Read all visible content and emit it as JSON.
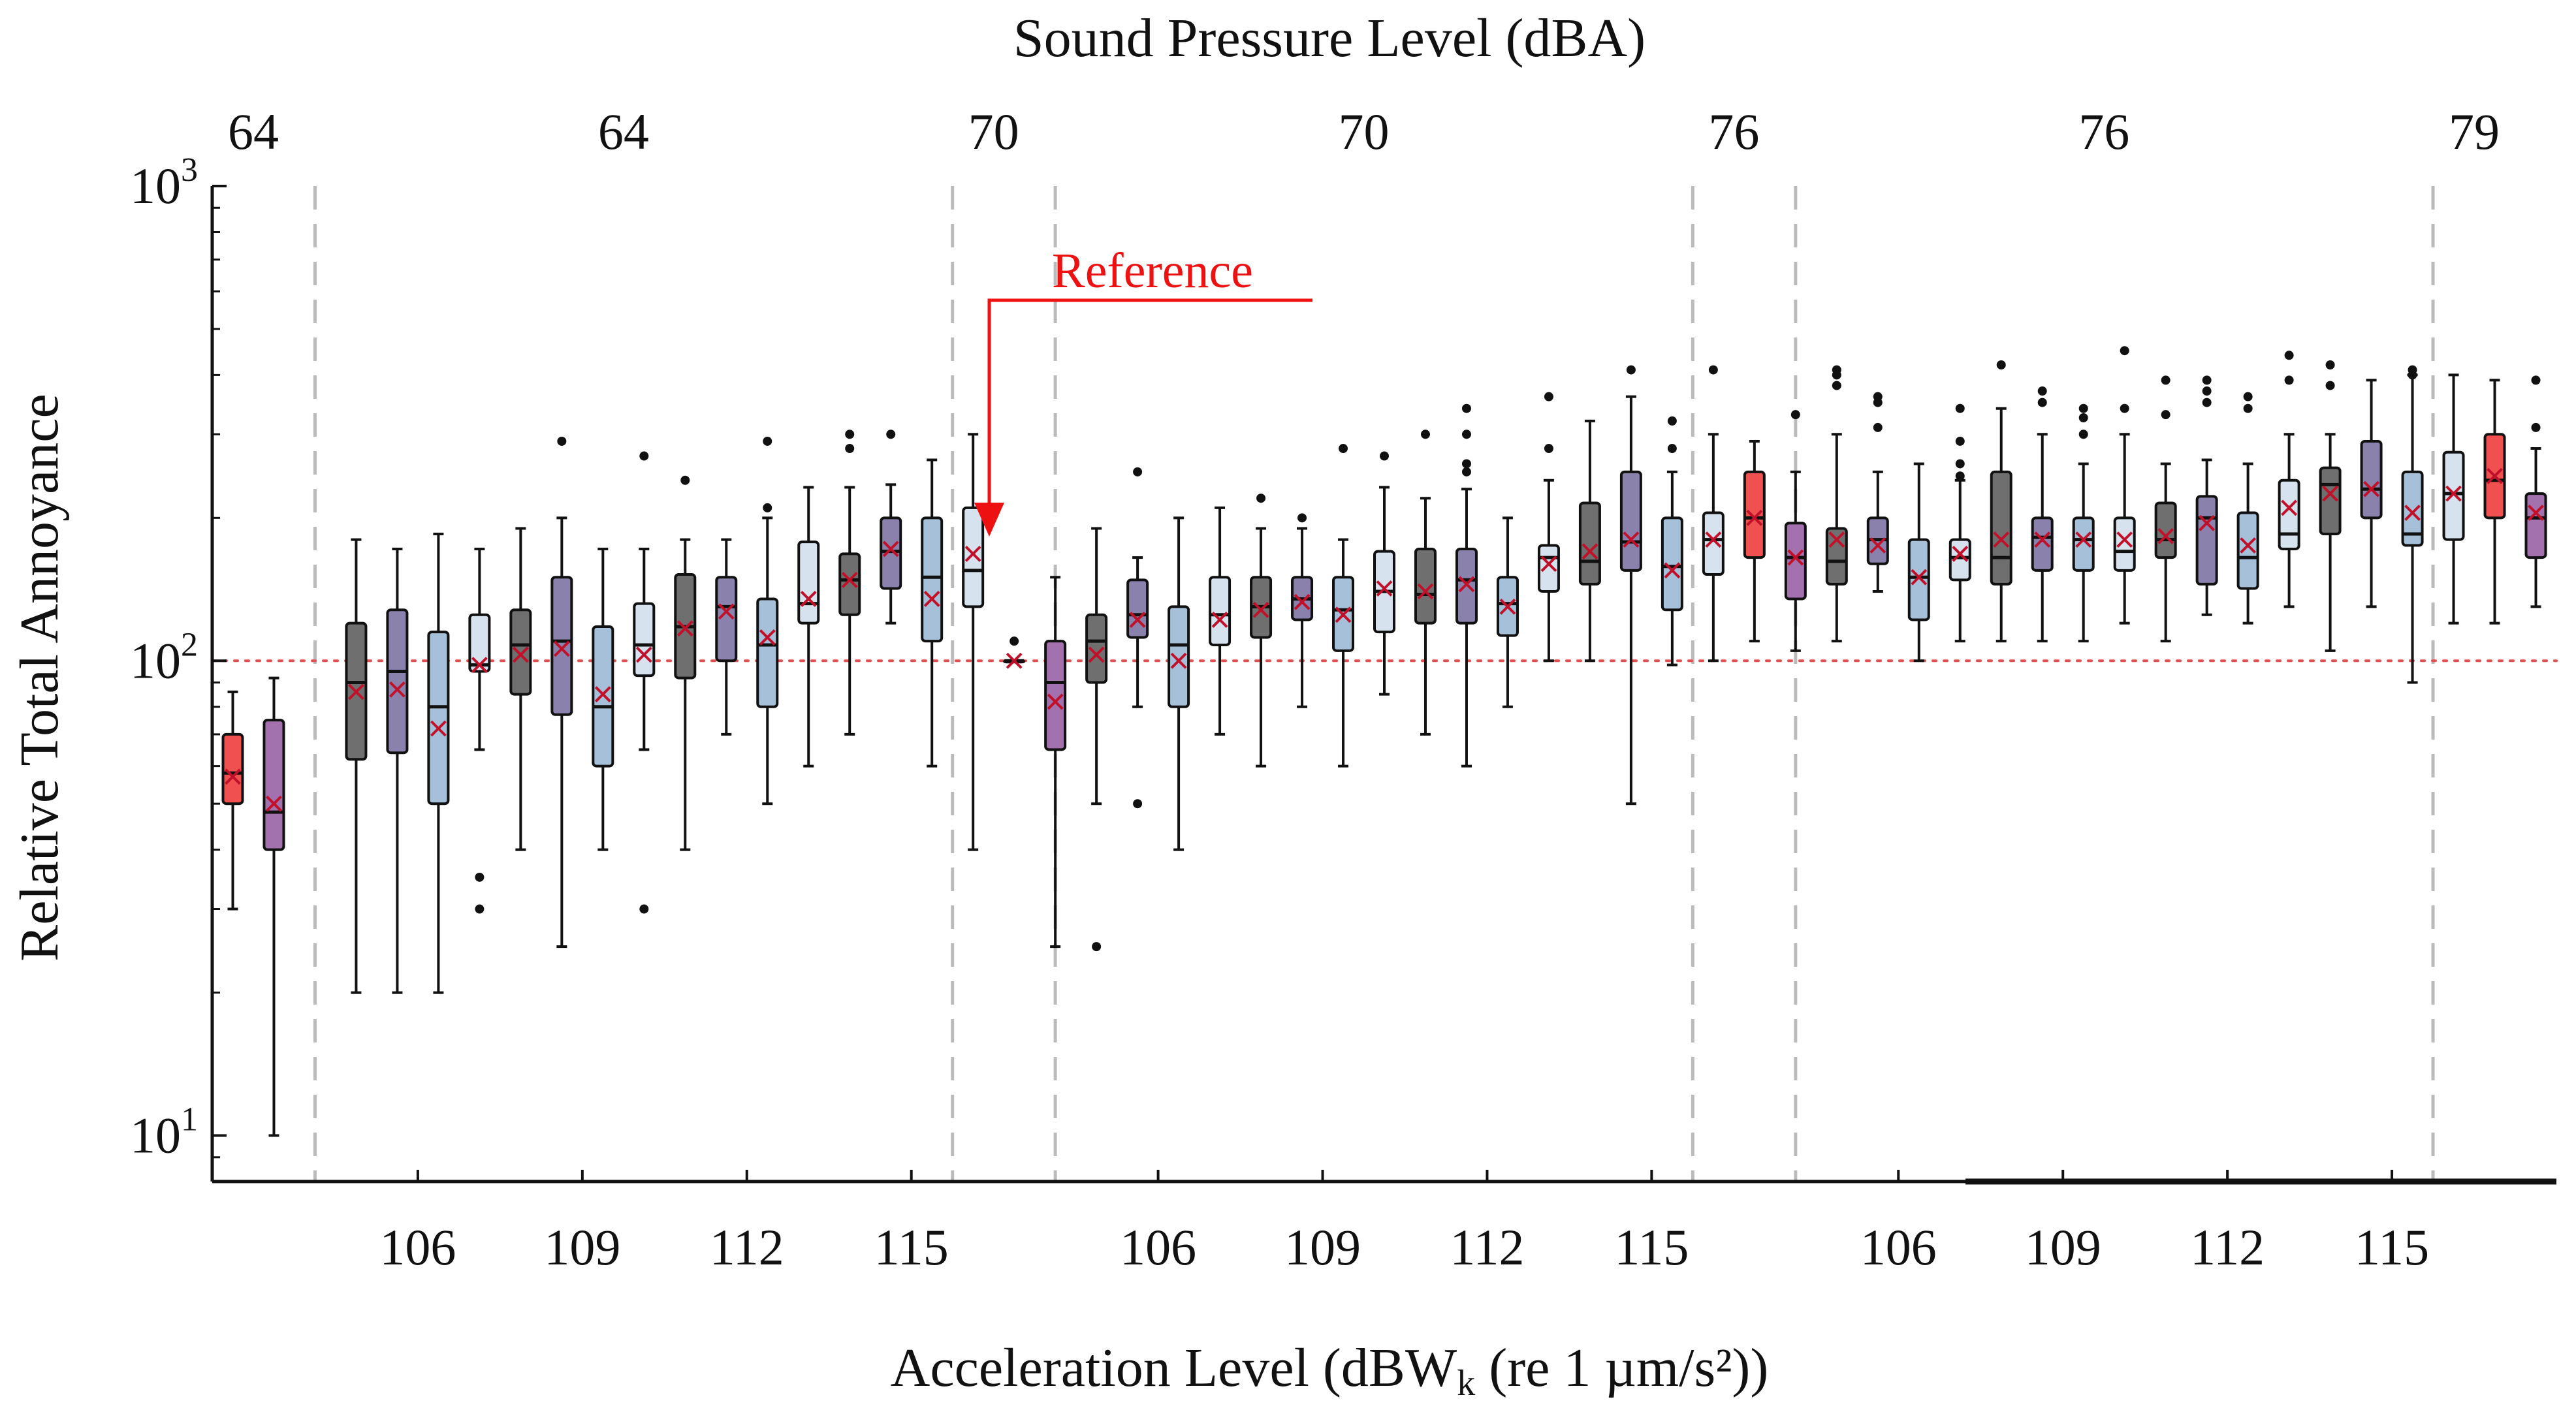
{
  "chart_data": {
    "type": "boxplot",
    "title_top": "Sound Pressure Level (dBA)",
    "xlabel_prefix": "Acceleration Level (dBW",
    "xlabel_sub": "k",
    "xlabel_suffix": " (re 1 µm/s²))",
    "ylabel": "Relative Total Annoyance",
    "yscale": "log",
    "ylim": [
      8,
      1000
    ],
    "y_ticks": [
      {
        "base": "10",
        "exp": "1",
        "value": 10
      },
      {
        "base": "10",
        "exp": "2",
        "value": 100
      },
      {
        "base": "10",
        "exp": "3",
        "value": 1000
      }
    ],
    "reference_value": 100,
    "reference_label": "Reference",
    "top_ticks": [
      {
        "label": "64",
        "pos": 1.5
      },
      {
        "label": "64",
        "pos": 10.5
      },
      {
        "label": "70",
        "pos": 19.5
      },
      {
        "label": "70",
        "pos": 28.5
      },
      {
        "label": "76",
        "pos": 37.5
      },
      {
        "label": "76",
        "pos": 46.5
      },
      {
        "label": "79",
        "pos": 55.5
      }
    ],
    "bottom_ticks": [
      {
        "label": "106",
        "pos": 5.5
      },
      {
        "label": "109",
        "pos": 9.5
      },
      {
        "label": "112",
        "pos": 13.5
      },
      {
        "label": "115",
        "pos": 17.5
      },
      {
        "label": "106",
        "pos": 23.5
      },
      {
        "label": "109",
        "pos": 27.5
      },
      {
        "label": "112",
        "pos": 31.5
      },
      {
        "label": "115",
        "pos": 35.5
      },
      {
        "label": "106",
        "pos": 41.5
      },
      {
        "label": "109",
        "pos": 45.5
      },
      {
        "label": "112",
        "pos": 49.5
      },
      {
        "label": "115",
        "pos": 53.5
      }
    ],
    "dividers": [
      3,
      18.5,
      21,
      36.5,
      39,
      54.5
    ],
    "x_range": [
      0.5,
      57.5
    ],
    "colors": {
      "red": "#f0504f",
      "purple": "#a371ad",
      "dark_gray": "#6f6f6f",
      "slate_purple": "#8a82ad",
      "light_blue": "#a6c0da",
      "pale_blue": "#d6e3ef",
      "mean_marker": "#c0102a",
      "reference_line": "#e05050",
      "reference_arrow": "#ee1111",
      "divider": "#bbbbbb"
    },
    "boxes": [
      {
        "pos": 1,
        "color": "red",
        "min": 30,
        "q1": 50,
        "median": 58,
        "q3": 70,
        "max": 86,
        "mean": 57,
        "outliers": []
      },
      {
        "pos": 2,
        "color": "purple",
        "min": 10,
        "q1": 40,
        "median": 48,
        "q3": 75,
        "max": 92,
        "mean": 50,
        "outliers": []
      },
      {
        "pos": 4,
        "color": "dark_gray",
        "min": 20,
        "q1": 62,
        "median": 90,
        "q3": 120,
        "max": 180,
        "mean": 86,
        "outliers": []
      },
      {
        "pos": 5,
        "color": "slate_purple",
        "min": 20,
        "q1": 64,
        "median": 95,
        "q3": 128,
        "max": 172,
        "mean": 87,
        "outliers": []
      },
      {
        "pos": 6,
        "color": "light_blue",
        "min": 20,
        "q1": 50,
        "median": 80,
        "q3": 115,
        "max": 185,
        "mean": 72,
        "outliers": []
      },
      {
        "pos": 7,
        "color": "pale_blue",
        "min": 65,
        "q1": 95,
        "median": 98,
        "q3": 125,
        "max": 172,
        "mean": 98,
        "outliers": [
          35,
          30
        ]
      },
      {
        "pos": 8,
        "color": "dark_gray",
        "min": 40,
        "q1": 85,
        "median": 108,
        "q3": 128,
        "max": 190,
        "mean": 103,
        "outliers": []
      },
      {
        "pos": 9,
        "color": "slate_purple",
        "min": 25,
        "q1": 77,
        "median": 110,
        "q3": 150,
        "max": 200,
        "mean": 106,
        "outliers": [
          290
        ]
      },
      {
        "pos": 10,
        "color": "light_blue",
        "min": 40,
        "q1": 60,
        "median": 80,
        "q3": 118,
        "max": 172,
        "mean": 85,
        "outliers": []
      },
      {
        "pos": 11,
        "color": "pale_blue",
        "min": 65,
        "q1": 93,
        "median": 108,
        "q3": 132,
        "max": 172,
        "mean": 103,
        "outliers": [
          270,
          30
        ]
      },
      {
        "pos": 12,
        "color": "dark_gray",
        "min": 40,
        "q1": 92,
        "median": 118,
        "q3": 152,
        "max": 180,
        "mean": 117,
        "outliers": [
          240
        ]
      },
      {
        "pos": 13,
        "color": "slate_purple",
        "min": 70,
        "q1": 100,
        "median": 130,
        "q3": 150,
        "max": 180,
        "mean": 127,
        "outliers": []
      },
      {
        "pos": 14,
        "color": "light_blue",
        "min": 50,
        "q1": 80,
        "median": 108,
        "q3": 135,
        "max": 200,
        "mean": 112,
        "outliers": [
          290,
          210
        ]
      },
      {
        "pos": 15,
        "color": "pale_blue",
        "min": 60,
        "q1": 120,
        "median": 132,
        "q3": 178,
        "max": 232,
        "mean": 135,
        "outliers": []
      },
      {
        "pos": 16,
        "color": "dark_gray",
        "min": 70,
        "q1": 125,
        "median": 148,
        "q3": 168,
        "max": 232,
        "mean": 148,
        "outliers": [
          300,
          280
        ]
      },
      {
        "pos": 17,
        "color": "slate_purple",
        "min": 120,
        "q1": 142,
        "median": 170,
        "q3": 200,
        "max": 235,
        "mean": 172,
        "outliers": [
          300
        ]
      },
      {
        "pos": 18,
        "color": "light_blue",
        "min": 60,
        "q1": 110,
        "median": 150,
        "q3": 200,
        "max": 265,
        "mean": 135,
        "outliers": []
      },
      {
        "pos": 19,
        "color": "pale_blue",
        "min": 40,
        "q1": 130,
        "median": 155,
        "q3": 210,
        "max": 300,
        "mean": 168,
        "outliers": []
      },
      {
        "pos": 20,
        "color": "dark_gray",
        "min": 100,
        "q1": 100,
        "median": 100,
        "q3": 100,
        "max": 100,
        "mean": 100,
        "outliers": [
          110
        ]
      },
      {
        "pos": 21,
        "color": "purple",
        "min": 25,
        "q1": 65,
        "median": 90,
        "q3": 110,
        "max": 150,
        "mean": 82,
        "outliers": []
      },
      {
        "pos": 22,
        "color": "dark_gray",
        "min": 50,
        "q1": 90,
        "median": 110,
        "q3": 125,
        "max": 190,
        "mean": 103,
        "outliers": [
          25
        ]
      },
      {
        "pos": 23,
        "color": "slate_purple",
        "min": 80,
        "q1": 112,
        "median": 125,
        "q3": 148,
        "max": 165,
        "mean": 122,
        "outliers": [
          250,
          50
        ]
      },
      {
        "pos": 24,
        "color": "light_blue",
        "min": 40,
        "q1": 80,
        "median": 108,
        "q3": 130,
        "max": 200,
        "mean": 100,
        "outliers": []
      },
      {
        "pos": 25,
        "color": "pale_blue",
        "min": 70,
        "q1": 108,
        "median": 125,
        "q3": 150,
        "max": 210,
        "mean": 122,
        "outliers": []
      },
      {
        "pos": 26,
        "color": "dark_gray",
        "min": 60,
        "q1": 112,
        "median": 130,
        "q3": 150,
        "max": 190,
        "mean": 128,
        "outliers": [
          220
        ]
      },
      {
        "pos": 27,
        "color": "slate_purple",
        "min": 80,
        "q1": 122,
        "median": 135,
        "q3": 150,
        "max": 190,
        "mean": 133,
        "outliers": [
          200
        ]
      },
      {
        "pos": 28,
        "color": "light_blue",
        "min": 60,
        "q1": 105,
        "median": 128,
        "q3": 150,
        "max": 180,
        "mean": 125,
        "outliers": [
          280
        ]
      },
      {
        "pos": 29,
        "color": "pale_blue",
        "min": 85,
        "q1": 115,
        "median": 140,
        "q3": 170,
        "max": 232,
        "mean": 142,
        "outliers": [
          270
        ]
      },
      {
        "pos": 30,
        "color": "dark_gray",
        "min": 70,
        "q1": 120,
        "median": 138,
        "q3": 172,
        "max": 220,
        "mean": 140,
        "outliers": [
          300
        ]
      },
      {
        "pos": 31,
        "color": "slate_purple",
        "min": 60,
        "q1": 120,
        "median": 148,
        "q3": 172,
        "max": 230,
        "mean": 145,
        "outliers": [
          340,
          300,
          260,
          250
        ]
      },
      {
        "pos": 32,
        "color": "light_blue",
        "min": 80,
        "q1": 113,
        "median": 132,
        "q3": 150,
        "max": 200,
        "mean": 130,
        "outliers": []
      },
      {
        "pos": 33,
        "color": "pale_blue",
        "min": 100,
        "q1": 140,
        "median": 165,
        "q3": 175,
        "max": 240,
        "mean": 160,
        "outliers": [
          360,
          280
        ]
      },
      {
        "pos": 34,
        "color": "dark_gray",
        "min": 100,
        "q1": 145,
        "median": 162,
        "q3": 215,
        "max": 320,
        "mean": 170,
        "outliers": []
      },
      {
        "pos": 35,
        "color": "slate_purple",
        "min": 50,
        "q1": 155,
        "median": 178,
        "q3": 250,
        "max": 360,
        "mean": 180,
        "outliers": [
          410
        ]
      },
      {
        "pos": 36,
        "color": "light_blue",
        "min": 98,
        "q1": 128,
        "median": 158,
        "q3": 200,
        "max": 250,
        "mean": 155,
        "outliers": [
          320,
          280
        ]
      },
      {
        "pos": 37,
        "color": "pale_blue",
        "min": 100,
        "q1": 152,
        "median": 180,
        "q3": 205,
        "max": 300,
        "mean": 180,
        "outliers": [
          410
        ]
      },
      {
        "pos": 38,
        "color": "red",
        "min": 110,
        "q1": 165,
        "median": 200,
        "q3": 250,
        "max": 290,
        "mean": 200,
        "outliers": []
      },
      {
        "pos": 39,
        "color": "purple",
        "min": 105,
        "q1": 135,
        "median": 165,
        "q3": 195,
        "max": 250,
        "mean": 165,
        "outliers": [
          330
        ]
      },
      {
        "pos": 40,
        "color": "dark_gray",
        "min": 110,
        "q1": 145,
        "median": 162,
        "q3": 190,
        "max": 300,
        "mean": 180,
        "outliers": [
          410,
          400,
          380
        ]
      },
      {
        "pos": 41,
        "color": "slate_purple",
        "min": 140,
        "q1": 160,
        "median": 180,
        "q3": 200,
        "max": 250,
        "mean": 175,
        "outliers": [
          360,
          350,
          310
        ]
      },
      {
        "pos": 42,
        "color": "light_blue",
        "min": 100,
        "q1": 122,
        "median": 150,
        "q3": 180,
        "max": 260,
        "mean": 150,
        "outliers": []
      },
      {
        "pos": 43,
        "color": "pale_blue",
        "min": 110,
        "q1": 148,
        "median": 165,
        "q3": 180,
        "max": 240,
        "mean": 168,
        "outliers": [
          340,
          290,
          260,
          245
        ]
      },
      {
        "pos": 44,
        "color": "dark_gray",
        "min": 110,
        "q1": 145,
        "median": 165,
        "q3": 250,
        "max": 340,
        "mean": 180,
        "outliers": [
          420
        ]
      },
      {
        "pos": 45,
        "color": "slate_purple",
        "min": 110,
        "q1": 155,
        "median": 182,
        "q3": 200,
        "max": 300,
        "mean": 180,
        "outliers": [
          370,
          350
        ]
      },
      {
        "pos": 46,
        "color": "light_blue",
        "min": 110,
        "q1": 155,
        "median": 180,
        "q3": 200,
        "max": 260,
        "mean": 180,
        "outliers": [
          340,
          325,
          300
        ]
      },
      {
        "pos": 47,
        "color": "pale_blue",
        "min": 120,
        "q1": 155,
        "median": 170,
        "q3": 200,
        "max": 300,
        "mean": 180,
        "outliers": [
          450,
          340
        ]
      },
      {
        "pos": 48,
        "color": "dark_gray",
        "min": 110,
        "q1": 165,
        "median": 180,
        "q3": 215,
        "max": 260,
        "mean": 183,
        "outliers": [
          390,
          330
        ]
      },
      {
        "pos": 49,
        "color": "slate_purple",
        "min": 125,
        "q1": 145,
        "median": 200,
        "q3": 222,
        "max": 265,
        "mean": 195,
        "outliers": [
          390,
          370,
          350
        ]
      },
      {
        "pos": 50,
        "color": "light_blue",
        "min": 120,
        "q1": 142,
        "median": 165,
        "q3": 205,
        "max": 260,
        "mean": 175,
        "outliers": [
          360,
          340
        ]
      },
      {
        "pos": 51,
        "color": "pale_blue",
        "min": 130,
        "q1": 172,
        "median": 185,
        "q3": 240,
        "max": 300,
        "mean": 210,
        "outliers": [
          440,
          390
        ]
      },
      {
        "pos": 52,
        "color": "dark_gray",
        "min": 105,
        "q1": 185,
        "median": 235,
        "q3": 255,
        "max": 300,
        "mean": 225,
        "outliers": [
          420,
          380
        ]
      },
      {
        "pos": 53,
        "color": "slate_purple",
        "min": 130,
        "q1": 200,
        "median": 230,
        "q3": 290,
        "max": 390,
        "mean": 230,
        "outliers": []
      },
      {
        "pos": 54,
        "color": "light_blue",
        "min": 90,
        "q1": 175,
        "median": 185,
        "q3": 250,
        "max": 400,
        "mean": 205,
        "outliers": [
          410,
          400
        ]
      },
      {
        "pos": 55,
        "color": "pale_blue",
        "min": 120,
        "q1": 180,
        "median": 225,
        "q3": 275,
        "max": 400,
        "mean": 225,
        "outliers": []
      },
      {
        "pos": 56,
        "color": "red",
        "min": 120,
        "q1": 200,
        "median": 240,
        "q3": 300,
        "max": 390,
        "mean": 245,
        "outliers": []
      },
      {
        "pos": 57,
        "color": "purple",
        "min": 130,
        "q1": 165,
        "median": 200,
        "q3": 225,
        "max": 280,
        "mean": 205,
        "outliers": [
          390,
          310
        ]
      }
    ]
  }
}
